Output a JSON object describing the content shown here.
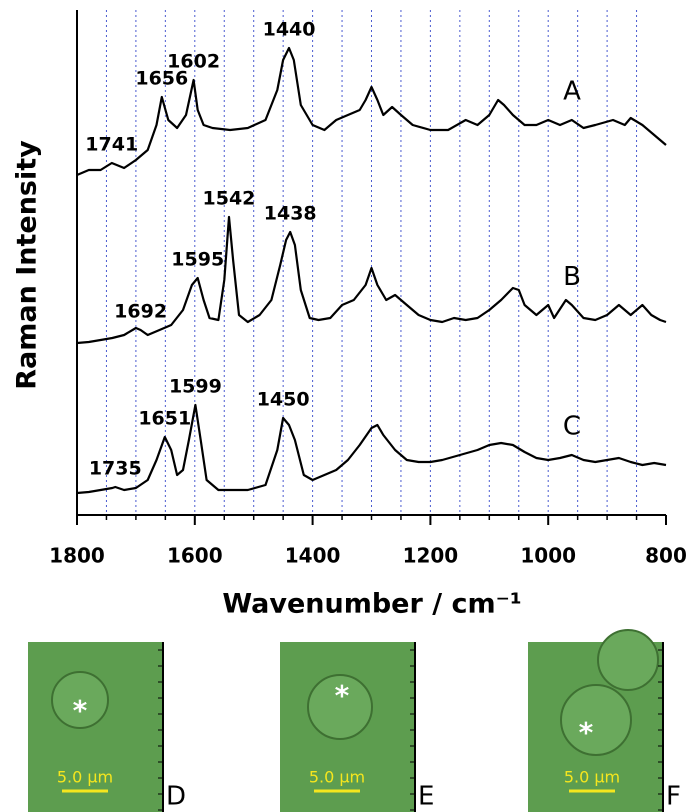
{
  "chart_data": {
    "type": "line",
    "ylabel": "Raman Intensity",
    "xlabel": "Wavenumber / cm⁻¹",
    "xlim": [
      1800,
      800
    ],
    "xticks": [
      1800,
      1600,
      1400,
      1200,
      1000,
      800
    ],
    "xgrid": [
      1750,
      1700,
      1650,
      1600,
      1550,
      1500,
      1450,
      1400,
      1350,
      1300,
      1250,
      1200,
      1150,
      1100,
      1050,
      1000,
      950,
      900,
      850
    ],
    "ylim": [
      0,
      505
    ],
    "grid_color": "#4a5bd0",
    "series": [
      {
        "name": "A",
        "color": "#000000",
        "peak_labels": [
          "1741",
          "1656",
          "1602",
          "1440"
        ],
        "x": [
          1800,
          1780,
          1760,
          1741,
          1720,
          1700,
          1680,
          1665,
          1656,
          1645,
          1630,
          1615,
          1602,
          1595,
          1585,
          1570,
          1540,
          1510,
          1480,
          1460,
          1450,
          1440,
          1432,
          1420,
          1400,
          1380,
          1360,
          1340,
          1320,
          1310,
          1300,
          1290,
          1280,
          1265,
          1250,
          1230,
          1200,
          1170,
          1140,
          1120,
          1100,
          1085,
          1075,
          1060,
          1040,
          1020,
          1000,
          980,
          960,
          940,
          920,
          890,
          870,
          860,
          840,
          820,
          800
        ],
        "values": [
          340,
          345,
          345,
          352,
          347,
          355,
          365,
          390,
          418,
          395,
          387,
          400,
          435,
          405,
          390,
          387,
          385,
          387,
          395,
          425,
          455,
          467,
          455,
          410,
          390,
          385,
          395,
          400,
          405,
          415,
          428,
          415,
          400,
          408,
          400,
          390,
          385,
          385,
          395,
          390,
          400,
          415,
          410,
          400,
          390,
          390,
          395,
          390,
          395,
          387,
          390,
          395,
          390,
          397,
          390,
          380,
          370
        ]
      },
      {
        "name": "B",
        "color": "#000000",
        "peak_labels": [
          "1692",
          "1595",
          "1542",
          "1438"
        ],
        "x": [
          1800,
          1780,
          1760,
          1740,
          1720,
          1700,
          1692,
          1680,
          1660,
          1640,
          1620,
          1605,
          1595,
          1585,
          1575,
          1560,
          1550,
          1542,
          1535,
          1525,
          1510,
          1490,
          1470,
          1455,
          1445,
          1438,
          1430,
          1420,
          1405,
          1390,
          1370,
          1350,
          1330,
          1310,
          1300,
          1290,
          1275,
          1260,
          1240,
          1220,
          1200,
          1180,
          1160,
          1140,
          1120,
          1100,
          1080,
          1060,
          1050,
          1040,
          1020,
          1000,
          990,
          970,
          960,
          940,
          920,
          900,
          880,
          860,
          840,
          825,
          810,
          800
        ],
        "values": [
          172,
          173,
          175,
          177,
          180,
          187,
          185,
          180,
          185,
          190,
          205,
          230,
          237,
          215,
          197,
          195,
          235,
          298,
          255,
          200,
          193,
          200,
          215,
          250,
          275,
          283,
          270,
          225,
          197,
          195,
          197,
          210,
          215,
          230,
          247,
          230,
          215,
          220,
          210,
          200,
          195,
          193,
          197,
          195,
          197,
          205,
          215,
          227,
          225,
          210,
          200,
          210,
          197,
          215,
          210,
          197,
          195,
          200,
          210,
          200,
          210,
          200,
          195,
          193
        ]
      },
      {
        "name": "C",
        "color": "#000000",
        "peak_labels": [
          "1735",
          "1651",
          "1599",
          "1450"
        ],
        "x": [
          1800,
          1780,
          1760,
          1740,
          1735,
          1720,
          1700,
          1680,
          1665,
          1651,
          1640,
          1630,
          1620,
          1610,
          1599,
          1590,
          1580,
          1560,
          1540,
          1510,
          1480,
          1460,
          1450,
          1440,
          1430,
          1415,
          1400,
          1380,
          1360,
          1340,
          1320,
          1300,
          1290,
          1280,
          1260,
          1240,
          1220,
          1200,
          1180,
          1150,
          1120,
          1100,
          1080,
          1060,
          1040,
          1020,
          1000,
          980,
          960,
          940,
          920,
          900,
          880,
          860,
          840,
          820,
          800
        ],
        "values": [
          22,
          23,
          25,
          27,
          28,
          25,
          27,
          35,
          55,
          78,
          65,
          40,
          45,
          75,
          110,
          75,
          35,
          25,
          25,
          25,
          30,
          65,
          97,
          90,
          75,
          40,
          35,
          40,
          45,
          55,
          70,
          87,
          90,
          80,
          65,
          55,
          53,
          53,
          55,
          60,
          65,
          70,
          72,
          70,
          63,
          57,
          55,
          57,
          60,
          55,
          53,
          55,
          57,
          53,
          50,
          52,
          50
        ]
      }
    ]
  },
  "panels": [
    {
      "label": "D",
      "scale_bar": "5.0 μm",
      "marker": "*"
    },
    {
      "label": "E",
      "scale_bar": "5.0 μm",
      "marker": "*"
    },
    {
      "label": "F",
      "scale_bar": "5.0 μm",
      "marker": "*"
    }
  ]
}
